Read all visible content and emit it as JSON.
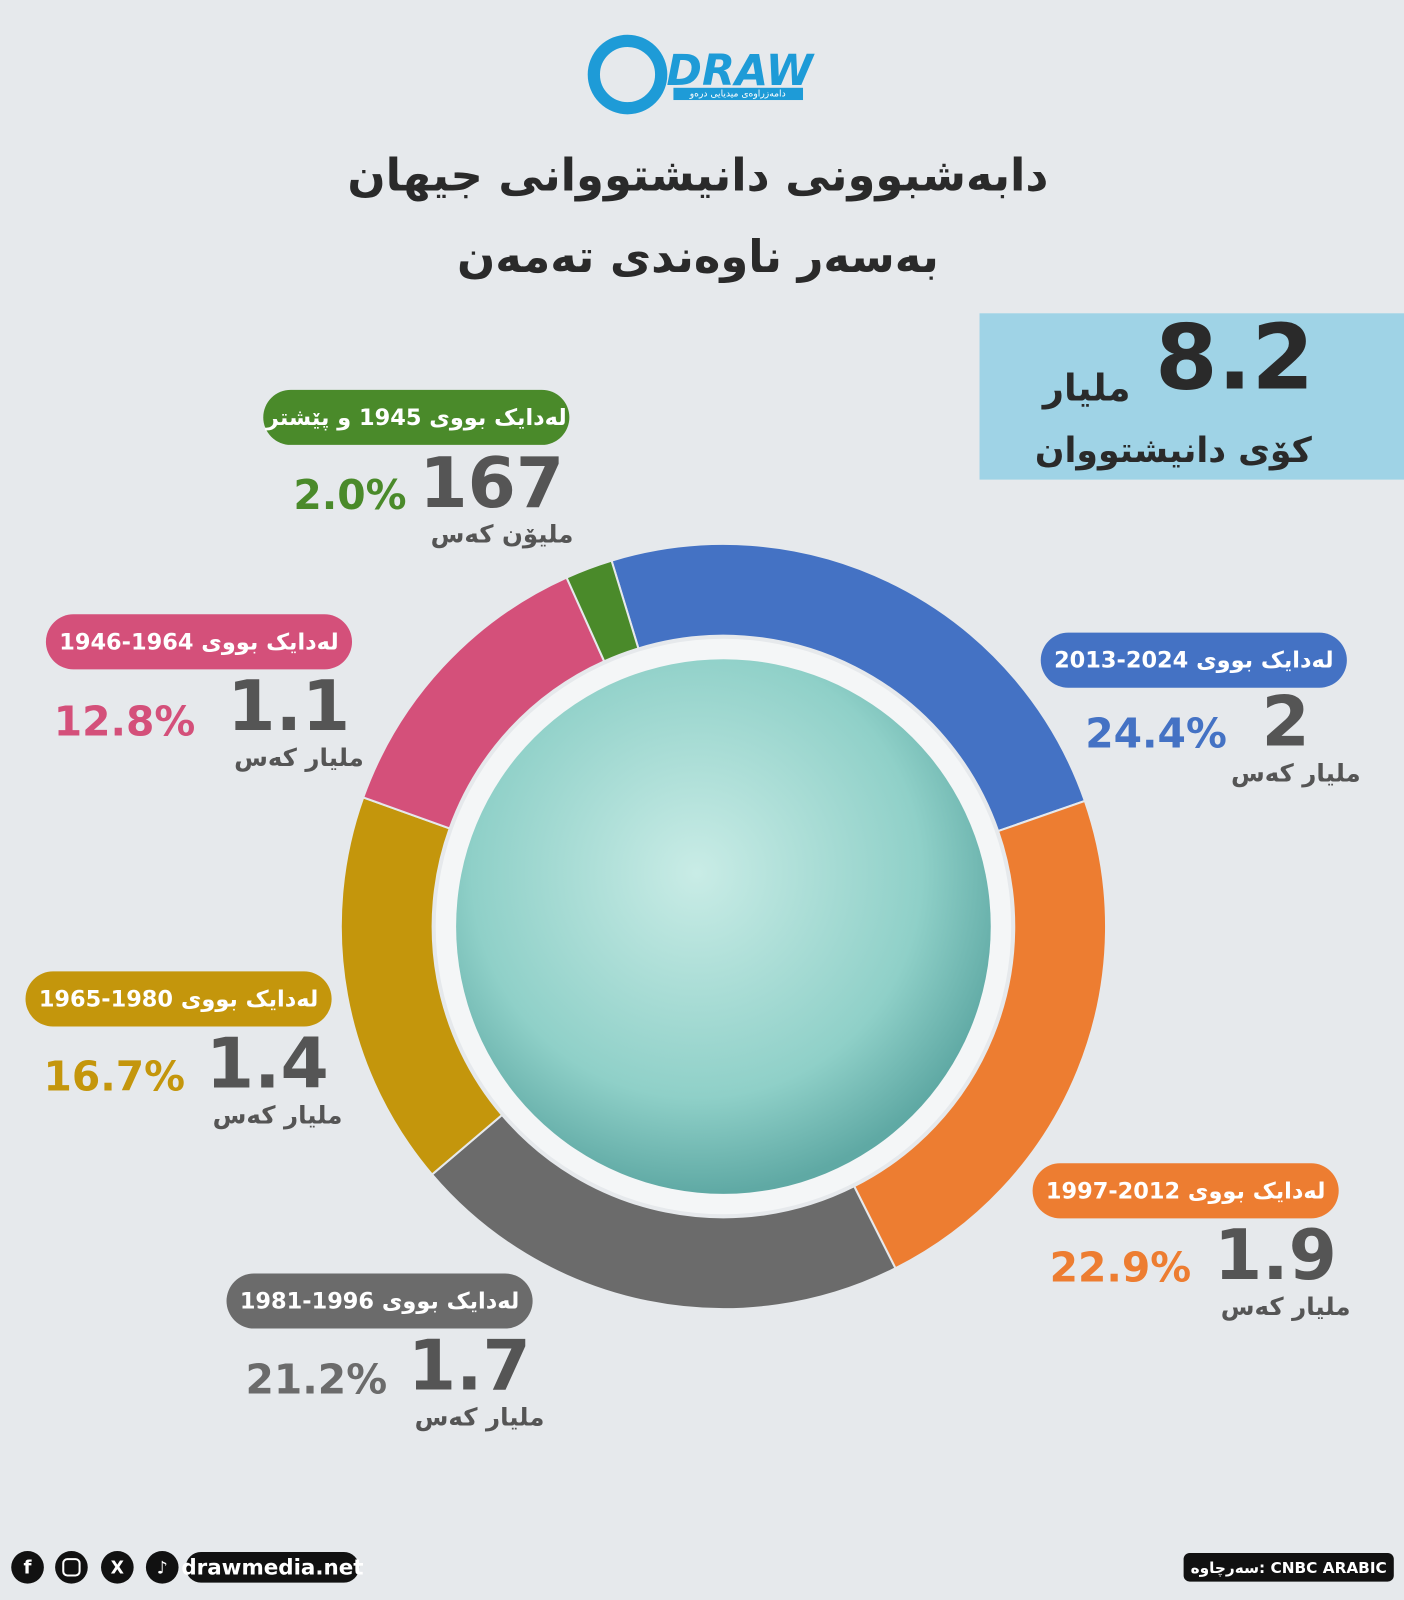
{
  "chart_data": {
    "type": "donut",
    "logo": "DRAW",
    "logo_tagline": "دامەزراوەی میدیایی درەو",
    "title": "دابەشبوونی دانیشتووانی جیهان",
    "subtitle": "بەسەر ناوەندی تەمەن",
    "total": 8.2,
    "total_unit": "ملیار",
    "total_label": "کۆی دانیشتووان",
    "categories": [
      "لەدایک بووی 2024-2013",
      "لەدایک بووی 2012-1997",
      "لەدایک بووی 1996-1981",
      "لەدایک بووی 1980-1965",
      "لەدایک بووی 1964-1946",
      "لەدایک بووی 1945 و پێشتر"
    ],
    "values": [
      24.4,
      22.9,
      21.2,
      16.7,
      12.8,
      2.0
    ],
    "value_labels": [
      "24.4%",
      "22.9%",
      "21.2%",
      "16.7%",
      "12.8%",
      "2.0%"
    ],
    "counts": [
      2,
      1.9,
      1.7,
      1.4,
      1.1,
      167
    ],
    "units": [
      "ملیار کەس",
      "ملیار کەس",
      "ملیار کەس",
      "ملیار کەس",
      "ملیار کەس",
      "ملیۆن کەس"
    ],
    "colors": [
      "#4472c4",
      "#ed7d31",
      "#6b6b6b",
      "#c4960c",
      "#d4507a",
      "#4a8a2a"
    ],
    "website": "drawmedia.net",
    "source": "سەرچاوە: CNBC ARABIC"
  }
}
